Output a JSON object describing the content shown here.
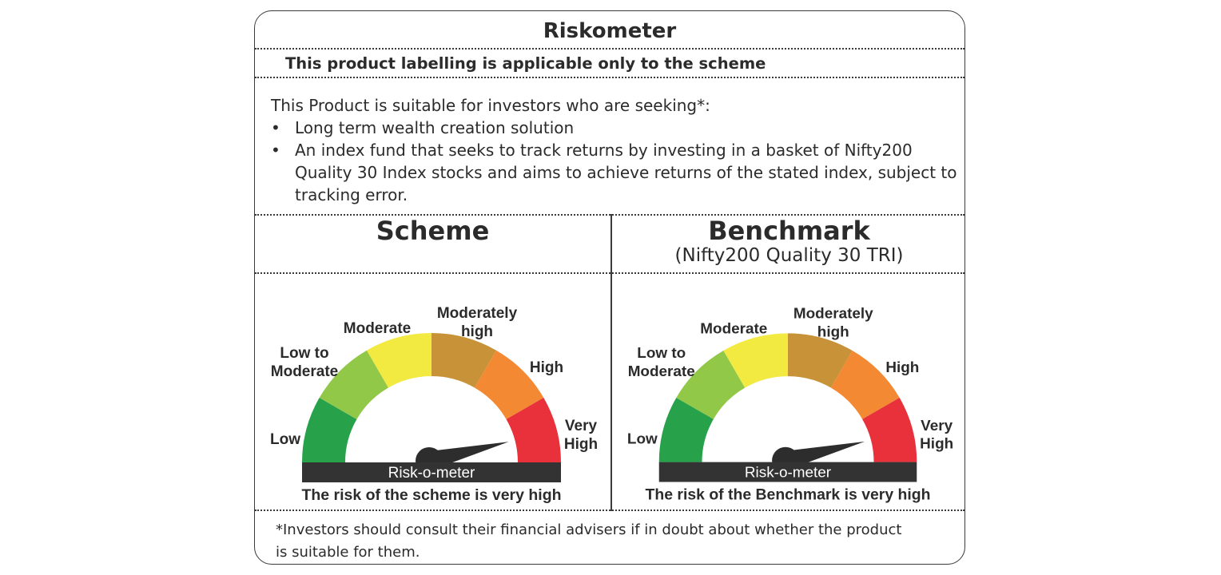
{
  "title": "Riskometer",
  "subtitle": "This product labelling is applicable only to the scheme",
  "intro": "This Product is suitable for investors who are seeking*:",
  "bullets": [
    {
      "symbol": "•",
      "text": "Long term wealth creation solution"
    },
    {
      "symbol": "•",
      "text": "An index fund that seeks to track returns by investing in a basket of Nifty200 Quality 30 Index stocks and aims to achieve returns of the stated index, subject to tracking error."
    }
  ],
  "scheme": {
    "heading": "Scheme",
    "meter_label": "Risk-o-meter",
    "caption": "The risk of the scheme is very high",
    "level": "Very High"
  },
  "benchmark": {
    "heading": "Benchmark",
    "subheading": "(Nifty200 Quality 30 TRI)",
    "meter_label": "Risk-o-meter",
    "caption": "The risk of the Benchmark is very high",
    "level": "Very High"
  },
  "risk_levels": [
    {
      "name": "low",
      "lines": [
        "Low"
      ],
      "color": "#27a24b"
    },
    {
      "name": "low-to-moderate",
      "lines": [
        "Low to",
        "Moderate"
      ],
      "color": "#92c848"
    },
    {
      "name": "moderate",
      "lines": [
        "Moderate"
      ],
      "color": "#f2e941"
    },
    {
      "name": "moderately-high",
      "lines": [
        "Moderately",
        "high"
      ],
      "color": "#c89238"
    },
    {
      "name": "high",
      "lines": [
        "High"
      ],
      "color": "#f38933"
    },
    {
      "name": "very-high",
      "lines": [
        "Very",
        "High"
      ],
      "color": "#e8313a"
    }
  ],
  "footnote": "*Investors should consult their financial advisers if in doubt about whether the product is suitable for them.",
  "colors": {
    "base_bar": "#333333",
    "needle": "#2d2d2d",
    "border": "#3a3a3a"
  }
}
